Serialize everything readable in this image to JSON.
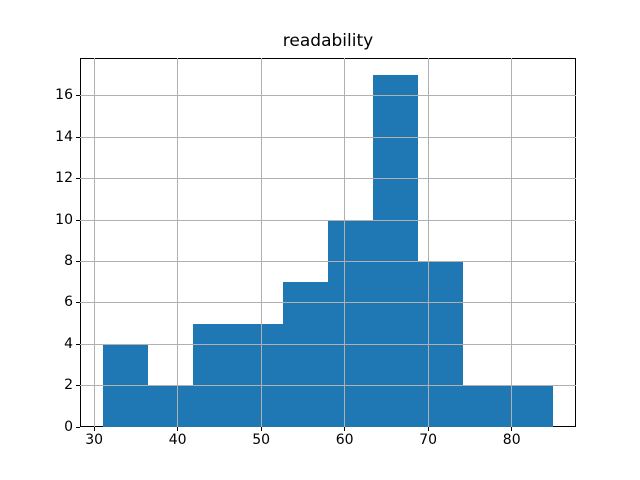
{
  "figure": {
    "background": "#ffffff"
  },
  "chart_data": {
    "type": "bar",
    "subtype": "histogram",
    "title": "readability",
    "xlabel": "",
    "ylabel": "",
    "bin_edges": [
      31.0,
      36.4,
      41.8,
      47.2,
      52.6,
      58.0,
      63.4,
      68.8,
      74.2,
      79.6,
      85.0
    ],
    "values": [
      4,
      2,
      5,
      5,
      7,
      10,
      17,
      8,
      2,
      2
    ],
    "xlim": [
      28.3,
      87.7
    ],
    "ylim": [
      0,
      17.85
    ],
    "x_ticks": [
      30,
      40,
      50,
      60,
      70,
      80
    ],
    "y_ticks": [
      0,
      2,
      4,
      6,
      8,
      10,
      12,
      14,
      16
    ],
    "grid": true,
    "legend": false,
    "grid_over_bars": true,
    "bar_color": "#1f77b4",
    "grid_color": "#b0b0b0",
    "spine_color": "#000000",
    "tick_color": "#000000",
    "text_color": "#000000"
  }
}
